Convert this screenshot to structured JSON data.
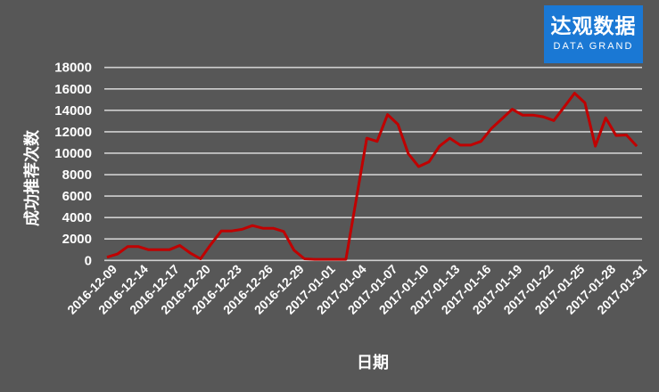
{
  "logo": {
    "cn": "达观数据",
    "en": "DATA GRAND",
    "color": "#1a78d4"
  },
  "chart_data": {
    "type": "line",
    "title": "",
    "xlabel": "日期",
    "ylabel": "成功推荐次数",
    "ylim": [
      0,
      18000
    ],
    "yticks": [
      0,
      2000,
      4000,
      6000,
      8000,
      10000,
      12000,
      14000,
      16000,
      18000
    ],
    "grid": true,
    "line_color": "#c00000",
    "x_tick_labels": [
      "2016-12-09",
      "2016-12-14",
      "2016-12-17",
      "2016-12-20",
      "2016-12-23",
      "2016-12-26",
      "2016-12-29",
      "2017-01-01",
      "2017-01-04",
      "2017-01-07",
      "2017-01-10",
      "2017-01-13",
      "2017-01-16",
      "2017-01-19",
      "2017-01-22",
      "2017-01-25",
      "2017-01-28",
      "2017-01-31"
    ],
    "values": [
      300,
      600,
      1300,
      1300,
      1000,
      1000,
      1000,
      1400,
      700,
      150,
      1500,
      2750,
      2750,
      2900,
      3250,
      3000,
      3000,
      2700,
      950,
      150,
      100,
      100,
      100,
      100,
      5750,
      11400,
      11100,
      13600,
      12700,
      9950,
      8750,
      9200,
      10650,
      11400,
      10750,
      10750,
      11100,
      12300,
      13200,
      14100,
      13550,
      13550,
      13400,
      13050,
      14300,
      15600,
      14700,
      10650,
      13300,
      11650,
      11700,
      10650
    ]
  }
}
